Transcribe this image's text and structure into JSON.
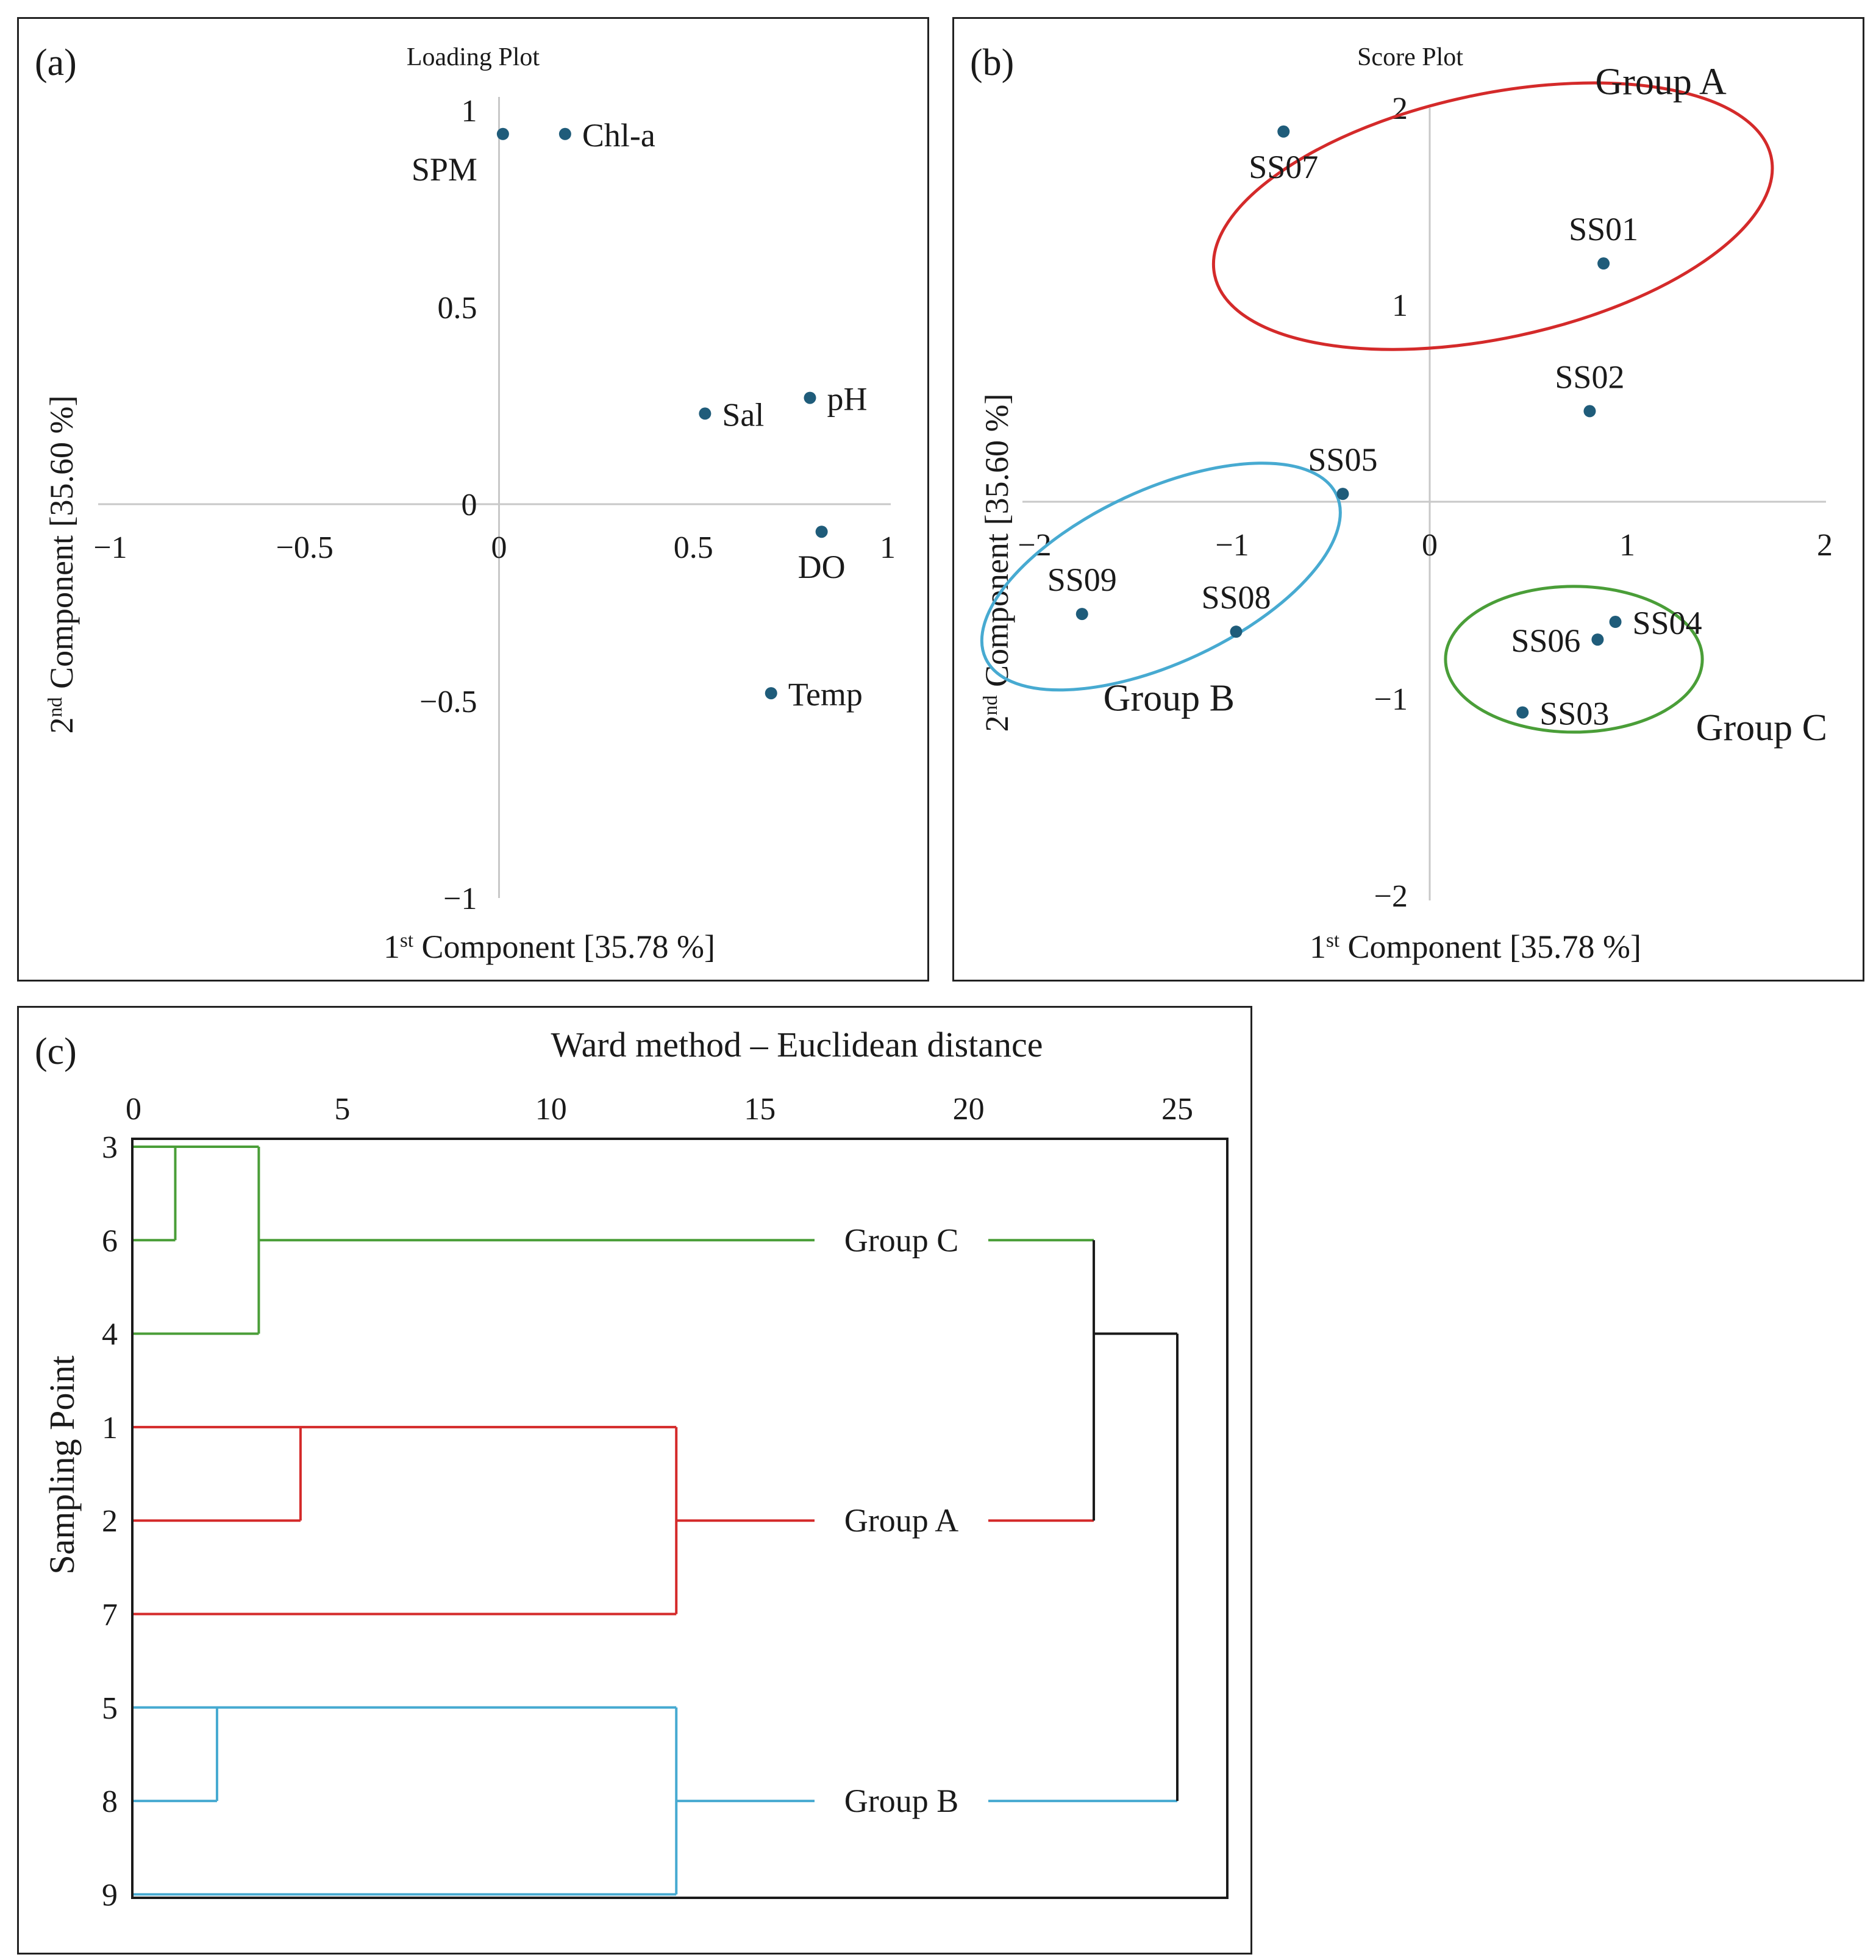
{
  "chart_data": [
    {
      "type": "scatter",
      "panel_label": "(a)",
      "title": "Loading Plot",
      "xlabel": {
        "prefix": "1",
        "sup": "st",
        "suffix": " Component [35.78 %]"
      },
      "ylabel": {
        "prefix": "2",
        "sup": "nd",
        "suffix": " Component [35.60 %]"
      },
      "xlim": [
        -1,
        1
      ],
      "ylim": [
        -1,
        1
      ],
      "x_ticks": [
        {
          "value": -1,
          "label": "−1"
        },
        {
          "value": -0.5,
          "label": "−0.5"
        },
        {
          "value": 0,
          "label": "0"
        },
        {
          "value": 0.5,
          "label": "0.5"
        },
        {
          "value": 1,
          "label": "1"
        }
      ],
      "y_ticks": [
        {
          "value": 1,
          "label": "1"
        },
        {
          "value": 0.5,
          "label": "0.5"
        },
        {
          "value": 0,
          "label": "0"
        },
        {
          "value": -0.5,
          "label": "−0.5"
        },
        {
          "value": -1,
          "label": "−1"
        }
      ],
      "points": [
        {
          "label": "SPM",
          "x": 0.01,
          "y": 0.94,
          "label_pos": "below-left"
        },
        {
          "label": "Chl-a",
          "x": 0.17,
          "y": 0.94,
          "label_pos": "right"
        },
        {
          "label": "Sal",
          "x": 0.53,
          "y": 0.23,
          "label_pos": "right"
        },
        {
          "label": "pH",
          "x": 0.8,
          "y": 0.27,
          "label_pos": "right"
        },
        {
          "label": "DO",
          "x": 0.83,
          "y": -0.07,
          "label_pos": "below"
        },
        {
          "label": "Temp",
          "x": 0.7,
          "y": -0.48,
          "label_pos": "right"
        }
      ],
      "point_color": "#1f5c7a"
    },
    {
      "type": "scatter",
      "panel_label": "(b)",
      "title": "Score Plot",
      "xlabel": {
        "prefix": "1",
        "sup": "st",
        "suffix": " Component [35.78 %]"
      },
      "ylabel": {
        "prefix": "2",
        "sup": "nd",
        "suffix": " Component [35.60 %]"
      },
      "xlim": [
        -2,
        2
      ],
      "ylim": [
        -2,
        2
      ],
      "x_ticks": [
        {
          "value": -2,
          "label": "−2"
        },
        {
          "value": -1,
          "label": "−1"
        },
        {
          "value": 0,
          "label": "0"
        },
        {
          "value": 1,
          "label": "1"
        },
        {
          "value": 2,
          "label": "2"
        }
      ],
      "y_ticks": [
        {
          "value": 2,
          "label": "2"
        },
        {
          "value": 1,
          "label": "1"
        },
        {
          "value": -1,
          "label": "−1"
        },
        {
          "value": -2,
          "label": "−2"
        }
      ],
      "points": [
        {
          "label": "SS07",
          "x": -0.74,
          "y": 1.88,
          "label_pos": "below"
        },
        {
          "label": "SS01",
          "x": 0.88,
          "y": 1.21,
          "label_pos": "above"
        },
        {
          "label": "SS02",
          "x": 0.81,
          "y": 0.46,
          "label_pos": "above"
        },
        {
          "label": "SS05",
          "x": -0.44,
          "y": 0.04,
          "label_pos": "above"
        },
        {
          "label": "SS09",
          "x": -1.76,
          "y": -0.57,
          "label_pos": "above"
        },
        {
          "label": "SS08",
          "x": -0.98,
          "y": -0.66,
          "label_pos": "above"
        },
        {
          "label": "SS06",
          "x": 0.85,
          "y": -0.7,
          "label_pos": "left"
        },
        {
          "label": "SS04",
          "x": 0.94,
          "y": -0.61,
          "label_pos": "right"
        },
        {
          "label": "SS03",
          "x": 0.47,
          "y": -1.07,
          "label_pos": "right"
        }
      ],
      "groups": [
        {
          "name": "Group A",
          "color": "#d42a2a",
          "center": [
            0.32,
            1.45
          ],
          "rx": 1.44,
          "ry": 0.62,
          "angle": -12,
          "label_at": [
            1.17,
            2.07
          ]
        },
        {
          "name": "Group B",
          "color": "#47aad1",
          "center": [
            -1.36,
            -0.38
          ],
          "rx": 0.98,
          "ry": 0.44,
          "angle": -25,
          "label_at": [
            -1.32,
            -1.06
          ]
        },
        {
          "name": "Group C",
          "color": "#4a9e38",
          "center": [
            0.73,
            -0.8
          ],
          "rx": 0.65,
          "ry": 0.37,
          "angle": 0,
          "label_at": [
            1.68,
            -1.21
          ]
        }
      ],
      "point_color": "#1f5c7a"
    },
    {
      "type": "dendrogram",
      "panel_label": "(c)",
      "title": "Ward method – Euclidean distance",
      "ylabel": "Sampling Point",
      "xlim": [
        0,
        26
      ],
      "x_ticks": [
        {
          "value": 0,
          "label": "0"
        },
        {
          "value": 5,
          "label": "5"
        },
        {
          "value": 10,
          "label": "10"
        },
        {
          "value": 15,
          "label": "15"
        },
        {
          "value": 20,
          "label": "20"
        },
        {
          "value": 25,
          "label": "25"
        }
      ],
      "leaves": [
        "3",
        "6",
        "4",
        "1",
        "2",
        "7",
        "5",
        "8",
        "9"
      ],
      "merges": [
        {
          "a": "3",
          "b": "6",
          "height": 1.0,
          "color": "#4a9e38"
        },
        {
          "a": "3+6",
          "b": "4",
          "height": 3.0,
          "color": "#4a9e38"
        },
        {
          "a": "1",
          "b": "2",
          "height": 4.0,
          "color": "#d42a2a"
        },
        {
          "a": "1+2",
          "b": "7",
          "height": 13.0,
          "color": "#d42a2a"
        },
        {
          "a": "5",
          "b": "8",
          "height": 2.0,
          "color": "#47aad1"
        },
        {
          "a": "5+8",
          "b": "9",
          "height": 13.0,
          "color": "#47aad1"
        },
        {
          "a": "Group C",
          "b": "Group A",
          "height": 23.0,
          "color": "#1a1a1a"
        },
        {
          "a": "C+A",
          "b": "Group B",
          "height": 25.0,
          "color": "#1a1a1a"
        }
      ],
      "group_labels": [
        {
          "name": "Group C",
          "color": "#4a9e38"
        },
        {
          "name": "Group A",
          "color": "#d42a2a"
        },
        {
          "name": "Group B",
          "color": "#47aad1"
        }
      ]
    }
  ]
}
